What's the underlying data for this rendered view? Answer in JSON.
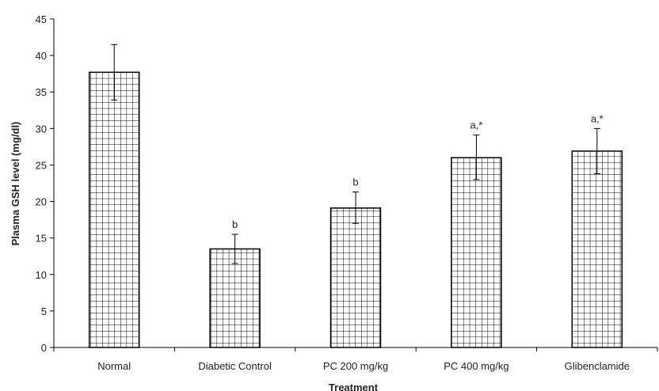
{
  "chart_data": {
    "type": "bar",
    "title": "",
    "xlabel": "Treatment",
    "ylabel": "Plasma GSH level (mg/dl)",
    "categories": [
      "Normal",
      "Diabetic Control",
      "PC 200 mg/kg",
      "PC 400 mg/kg",
      "Glibenclamide"
    ],
    "values": [
      37.7,
      13.5,
      19.1,
      26.0,
      26.9
    ],
    "error_upper": [
      41.5,
      15.5,
      21.3,
      29.1,
      30.0
    ],
    "error_lower": [
      33.9,
      11.5,
      17.0,
      23.0,
      23.8
    ],
    "annotations": [
      "",
      "b",
      "b",
      "a,*",
      "a,*"
    ],
    "ylim": [
      0,
      45
    ],
    "yticks": [
      0,
      5,
      10,
      15,
      20,
      25,
      30,
      35,
      40,
      45
    ],
    "grid": false,
    "legend": "none",
    "bar_pattern": "grid-hatch",
    "colors": {
      "bar_fill": "#ffffff",
      "bar_line": "#000000",
      "axis": "#000000"
    }
  }
}
